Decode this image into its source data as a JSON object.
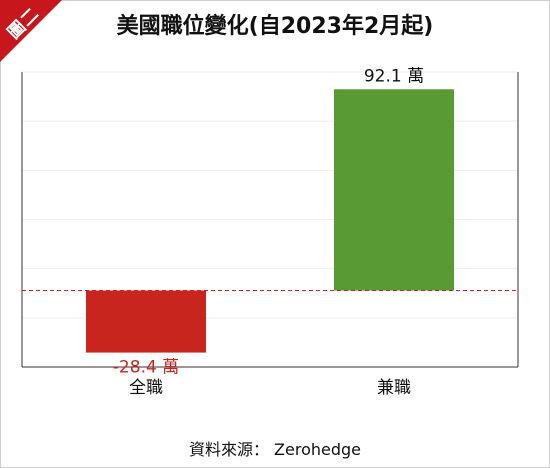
{
  "badge": "圖二",
  "title": "美國職位變化(自2023年2月起)",
  "source": "資料來源： Zerohedge",
  "colors": {
    "negative": "#c9251f",
    "positive": "#5a9a32",
    "zero_line": "#c9251f",
    "axis": "#333333",
    "badge": "#c8161d"
  },
  "chart_data": {
    "type": "bar",
    "title": "美國職位變化(自2023年2月起)",
    "categories": [
      "全職",
      "兼職"
    ],
    "values": [
      -28.4,
      92.1
    ],
    "data_labels": [
      "-28.4 萬",
      "92.1 萬"
    ],
    "unit": "萬",
    "ylim": [
      -35,
      100
    ],
    "grid": true,
    "legend": "none",
    "source": "資料來源： Zerohedge"
  }
}
